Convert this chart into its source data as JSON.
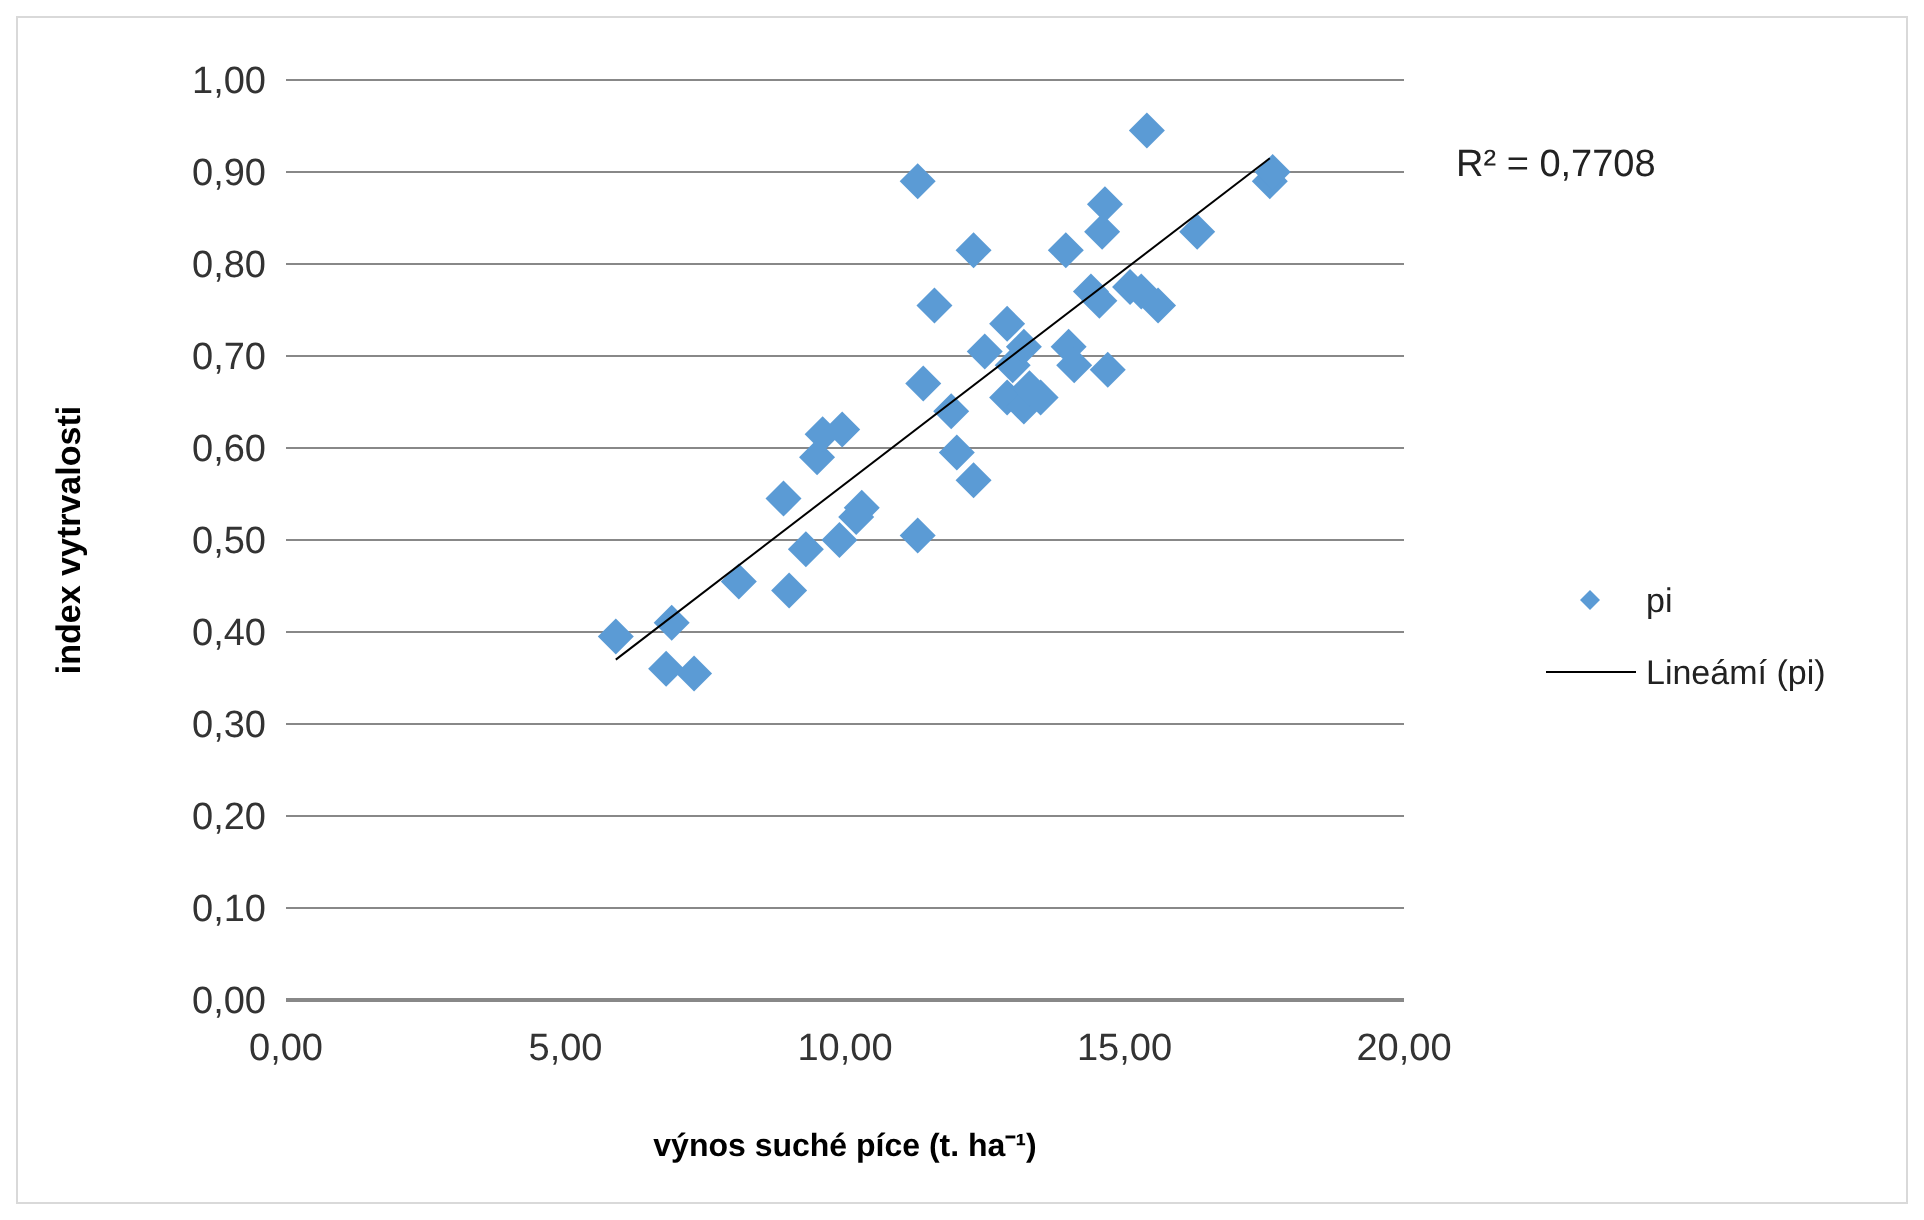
{
  "chart_data": {
    "type": "scatter",
    "xlabel": "výnos suché píce (t. ha⁻¹)",
    "ylabel": "index vytrvalosti",
    "xlim": [
      0,
      20
    ],
    "xticks": [
      {
        "value": 0,
        "label": "0,00"
      },
      {
        "value": 5,
        "label": "5,00"
      },
      {
        "value": 10,
        "label": "10,00"
      },
      {
        "value": 15,
        "label": "15,00"
      },
      {
        "value": 20,
        "label": "20,00"
      }
    ],
    "ylim": [
      0,
      1
    ],
    "yticks": [
      {
        "value": 0,
        "label": "0,00"
      },
      {
        "value": 0.1,
        "label": "0,10"
      },
      {
        "value": 0.2,
        "label": "0,20"
      },
      {
        "value": 0.3,
        "label": "0,30"
      },
      {
        "value": 0.4,
        "label": "0,40"
      },
      {
        "value": 0.5,
        "label": "0,50"
      },
      {
        "value": 0.6,
        "label": "0,60"
      },
      {
        "value": 0.7,
        "label": "0,70"
      },
      {
        "value": 0.8,
        "label": "0,80"
      },
      {
        "value": 0.9,
        "label": "0,90"
      },
      {
        "value": 1,
        "label": "1,00"
      }
    ],
    "grid": "y",
    "legend": "right",
    "annotations": [
      "R² = 0,7708"
    ],
    "series": [
      {
        "name": "pi",
        "marker": "diamond",
        "color": "#5b9bd5",
        "x": [
          5.9,
          6.9,
          6.8,
          7.3,
          8.1,
          8.9,
          9.0,
          9.3,
          9.5,
          9.6,
          9.95,
          9.9,
          10.3,
          10.2,
          11.3,
          11.3,
          11.4,
          11.6,
          11.9,
          12.0,
          12.3,
          12.3,
          12.5,
          12.9,
          12.9,
          13.0,
          13.2,
          13.2,
          13.3,
          13.5,
          13.95,
          14.0,
          14.1,
          14.4,
          14.55,
          14.6,
          14.65,
          14.7,
          15.1,
          15.3,
          15.4,
          15.6,
          16.3,
          17.6,
          17.65
        ],
        "values": [
          0.395,
          0.41,
          0.36,
          0.355,
          0.455,
          0.545,
          0.445,
          0.49,
          0.59,
          0.615,
          0.62,
          0.5,
          0.535,
          0.525,
          0.505,
          0.89,
          0.67,
          0.755,
          0.64,
          0.595,
          0.815,
          0.565,
          0.705,
          0.735,
          0.655,
          0.69,
          0.71,
          0.645,
          0.665,
          0.655,
          0.815,
          0.71,
          0.69,
          0.77,
          0.76,
          0.835,
          0.865,
          0.685,
          0.775,
          0.77,
          0.945,
          0.755,
          0.835,
          0.89,
          0.9
        ]
      },
      {
        "name": "Lineámí (pi)",
        "type": "line",
        "marker": "none",
        "color": "#000000",
        "line_style": "solid",
        "x": [
          5.9,
          17.6
        ],
        "values": [
          0.37,
          0.915
        ]
      }
    ]
  }
}
